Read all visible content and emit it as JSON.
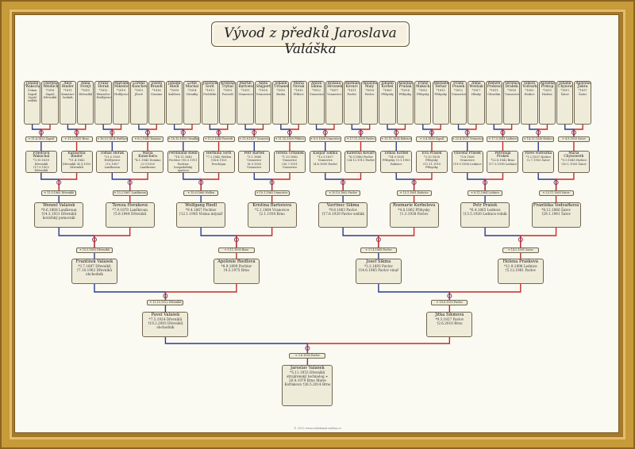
{
  "title": "Vývod z předků Jaroslava Valáška",
  "footer": "© 2013 www.rodokmen-rodina.cz",
  "colors": {
    "male_line": "#2a3a8c",
    "female_line": "#c42a2a",
    "card_bg": "#efebd9",
    "frame": "#c79a3a"
  },
  "generations": {
    "gen5": [
      {
        "name": "Johann Wakschal",
        "info": "Čekan Zapsil Opsál sedlák"
      },
      {
        "name": "Theresia Weidlich",
        "info": "*1818 Zapsil Dřevníků"
      },
      {
        "name": "Anol Binder",
        "info": "*1811 Komárov bedník"
      },
      {
        "name": "Anna Forejt",
        "info": "*1815 Dřevníků"
      },
      {
        "name": "Franz Horak",
        "info": "*1812 Wenzelov Hrdějovice"
      },
      {
        "name": "Marianna Mikeslova",
        "info": "*1819 Hrdějovice"
      },
      {
        "name": "Lorenz Kuncheva",
        "info": "*1813 Jílové"
      },
      {
        "name": "Josefa Brandt",
        "info": "*1816 Domino"
      },
      {
        "name": "Johann Riedl",
        "info": "*1809 Kaliforn"
      },
      {
        "name": "Lotte Machal",
        "info": "*1814 Otradky"
      },
      {
        "name": "Joachym Sorn",
        "info": "*1813 Prohlédn"
      },
      {
        "name": "Kristina Trybal",
        "info": "*1819 Pozvedí"
      },
      {
        "name": "Martin Bartoesch",
        "info": "*1811 Vranovice"
      },
      {
        "name": "Anna Stejpert",
        "info": "*1818 Vranovice"
      },
      {
        "name": "Johann Urbanek",
        "info": "*1810 Buzka"
      },
      {
        "name": "Maria Novak",
        "info": "*1815 Přibice"
      },
      {
        "name": "Anton Sikma",
        "info": "*1812 Vranovice"
      },
      {
        "name": "Rozalia Hrousek",
        "info": "*1817 Vranovice"
      },
      {
        "name": "Mathias Kovarc",
        "info": "*1811 Pavlov"
      },
      {
        "name": "Apolonia Maly",
        "info": "*1816 Pavlov"
      },
      {
        "name": "Johann Korbel",
        "info": "*1809 Přibysky"
      },
      {
        "name": "Anastazia Prudak",
        "info": "*1814 Přibysky"
      },
      {
        "name": "Franz Makschal",
        "info": "*1810 Přibysky"
      },
      {
        "name": "Marianna Terbar",
        "info": "*1815 Přibysky"
      },
      {
        "name": "Franz Prasek",
        "info": "*1812 Vranovice"
      },
      {
        "name": "Anna Wostiak",
        "info": "*1817 Hlinky"
      },
      {
        "name": "Wenzel Prokesch",
        "info": "*1811 Chrudim"
      },
      {
        "name": "Veronica Drabek",
        "info": "*1816 Vranovice"
      },
      {
        "name": "Simon Vodvarka",
        "info": "*1810 Hodice"
      },
      {
        "name": "Apolena Prokop",
        "info": "*1815 Hodice"
      },
      {
        "name": "Johann Chynoweth",
        "info": "*1811 Šatov"
      },
      {
        "name": "Apolonie Jiskra",
        "info": "*1817 Šatov"
      }
    ],
    "gen5_marriages": [
      "⚭ 11.8.1833 Zapsil",
      "⚭ 11.2.1839 Brno",
      "⚭ 18.10.1834 Hrdějovice",
      "⚭ 6.2.1840 Domino",
      "⚭ 18.10.1835 Otradky",
      "⚭ 11.5.1840 Pozvedí",
      "⚭ 31.8.1837 Vranovice",
      "⚭ 11.10.1839 Přibice",
      "⚭ 8.9.1836 Vranovice",
      "⚭ 17.11.1839 Pavlov",
      "⚭ 13.11.1834 Rakvice",
      "⚭ 9.4.1838 Zapsil",
      "⚭ 23.4.1837 Vranovice",
      "⚭ 17.5.1841 Lednice",
      "⚭ 14.11.1836 Hodice",
      "⚭ 4.9.1839 Šatov"
    ],
    "gen4": [
      {
        "name": "Friedrich Wakschal",
        "info": "*3.10.1839 Dřevníků †17.5.1902 Dřevníků obuchovník"
      },
      {
        "name": "Katharina Binder",
        "info": "*11.4.1842 Dřevníků †4.9.1910 Dřevníků"
      },
      {
        "name": "Tomas Horak",
        "info": "*21.5.1839 Hrdějovice †12.1907 Lanškroun"
      },
      {
        "name": "Maria Kunschera",
        "info": "*4.1.1843 Domino †2.9.1920 Lanškroun"
      },
      {
        "name": "Ferdinand Riedl",
        "info": "*14.11.1840 Pochtor †16.3.1911 Pochtor hospodářský správce"
      },
      {
        "name": "Hermina Sorn",
        "info": "*7.2.1842 Wollen †14.8.1923 Prechtjan"
      },
      {
        "name": "Petr Bartek",
        "info": "*3.1.1840 Vranovice †8.5.1903 Vranovice"
      },
      {
        "name": "Tereza Urbánek",
        "info": "*1.10.1842 Vranovice †30.7.1911 Vranovice"
      },
      {
        "name": "Kaspar Sikma",
        "info": "*12.5.1837 Vranovice †4.6.1899 Pavlov"
      },
      {
        "name": "Kateřina Kovarř",
        "info": "*6.9.1840 Pavlov †24.12.1912 Pavlov"
      },
      {
        "name": "Tomáš Korbel",
        "info": "*14.9.1835 Přibysky †3.1.1903 Rakvice"
      },
      {
        "name": "Eva Prášek",
        "info": "*2.10.1838 Přibysky †11.11.1910 Přibysky"
      },
      {
        "name": "Vincenz Prášek",
        "info": "*5.6.1838 Vranovice †19.9.1906 Lednice"
      },
      {
        "name": "Petronila Prokeš",
        "info": "*22.8.1842 Brno †17.3.1918 Lednice"
      },
      {
        "name": "Pavel Vodvařka",
        "info": "*1.2.1837 Hodice †2.7.1903 Šatov"
      },
      {
        "name": "Maria Chynoweth",
        "info": "*5.9.1840 Hodice †30.1.1905 Šatov"
      }
    ],
    "gen4_marriages": [
      "⚭ 11.9.1865 Dřevníků",
      "⚭ 13.2.1867 Lanškroun",
      "⚭ 15.6.1866 Wollen",
      "⚭ 10.1.1863 Vranovice",
      "⚭ 10.10.1862 Pavlov",
      "⚭ 13.1.1861 Rakvice",
      "⚭ 8.11.1864 Lednice",
      "⚭ 25.11.1865 Šatov"
    ],
    "gen3": [
      {
        "name": "Wenzel Valášek",
        "info": "*9.6.1868 Lanškroun †14.3.1931 Dřevníků kovářský pomocník"
      },
      {
        "name": "Tereza Horáková",
        "info": "*7.9.1870 Lanškroun †5.8.1944 Dřevníků"
      },
      {
        "name": "Wolfgang Riedl",
        "info": "*9.4.1867 Pochtor †12.1.1945 Vöslau mlynář"
      },
      {
        "name": "Kristina Bartošová",
        "info": "*2.1.1864 Vranovice †2.1.1934 Brno"
      },
      {
        "name": "Vavřinec Šikma",
        "info": "*9.8.1863 Pavlov †17.6.1929 Pavlov sedlák"
      },
      {
        "name": "Rozmarie Korbelová",
        "info": "*4.8.1862 Přibysky †1.3.1938 Pavlov"
      },
      {
        "name": "Petr Prášek",
        "info": "*6.4.1865 Lednice †13.5.1920 Lednice rolník"
      },
      {
        "name": "Františka Vodvařková",
        "info": "*8.12.1866 Šatov †29.1.1941 Šatov"
      }
    ],
    "gen3_marriages": [
      "⚭ 15.5.1893 Dřevníků",
      "⚭ 9.11.1890 Brno",
      "⚭ 27.4.1888 Pavlov",
      "⚭ 14.2.1891 Šatov"
    ],
    "gen2": [
      {
        "name": "František Valášek",
        "info": "*3.7.1897 Dřevníků †7.10.1962 Dřevníků obchodník"
      },
      {
        "name": "Apolonie Riedlová",
        "info": "*8.9.1899 Pochtor †4.5.1975 Brno"
      },
      {
        "name": "Josef Šikma",
        "info": "*3.3.1893 Pavlov †14.6.1965 Pavlov vinař"
      },
      {
        "name": "Helena Prášková",
        "info": "*11.9.1896 Lednice †5.12.1981 Pavlov"
      }
    ],
    "gen2_marriages": [
      "⚭ 12.10.1922 Dřevníků",
      "⚭ 18.8.1920 Pavlov"
    ],
    "gen1": [
      {
        "name": "Pavel Valášek",
        "info": "*7.5.1924 Dřevníků †19.2.2003 Dřevníků obchodník"
      },
      {
        "name": "Jitka Šikmová",
        "info": "*9.3.1927 Pavlov †2.6.2010 Brno"
      }
    ],
    "gen1_marriage": "⚭ 3.6.1950 Pavlov",
    "proband": {
      "name": "Jaroslav Valášek",
      "info": "*5.11.1953 Dřevníků strojírenský technolog ⚭ 20.4.1979 Brno Marie Kořínková †26.5.2014 Brno"
    }
  }
}
